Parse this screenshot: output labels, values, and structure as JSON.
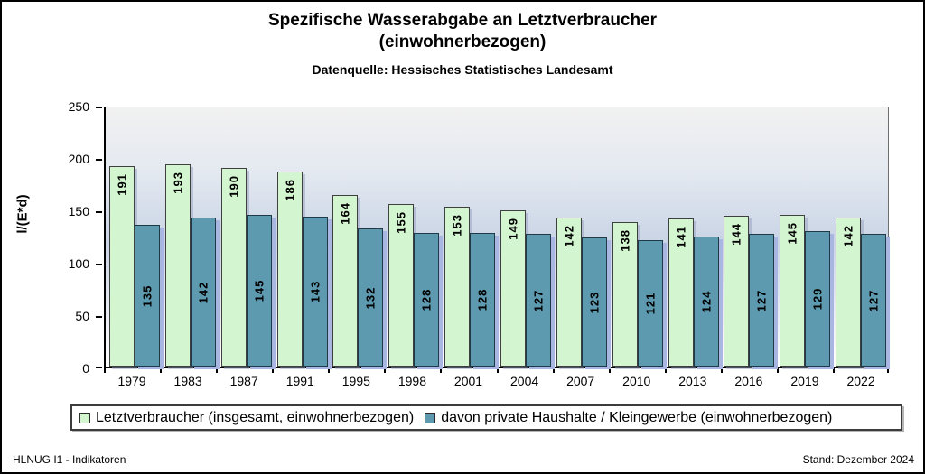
{
  "header": {
    "title_line1": "Spezifische Wasserabgabe an Letztverbraucher",
    "title_line2": "(einwohnerbezogen)",
    "subtitle": "Datenquelle: Hessisches Statistisches Landesamt"
  },
  "chart_data": {
    "type": "bar",
    "title": "Spezifische Wasserabgabe an Letztverbraucher (einwohnerbezogen)",
    "subtitle": "Datenquelle: Hessisches Statistisches Landesamt",
    "categories": [
      "1979",
      "1983",
      "1987",
      "1991",
      "1995",
      "1998",
      "2001",
      "2004",
      "2007",
      "2010",
      "2013",
      "2016",
      "2019",
      "2022"
    ],
    "series": [
      {
        "name": "Letztverbraucher (insgesamt, einwohnerbezogen)",
        "values": [
          191,
          193,
          190,
          186,
          164,
          155,
          153,
          149,
          142,
          138,
          141,
          144,
          145,
          142
        ],
        "fill": "#d3f5cf",
        "border": "#3f3f3f",
        "label_position": "inside-top"
      },
      {
        "name": "davon private Haushalte / Kleingewerbe (einwohnerbezogen)",
        "values": [
          135,
          142,
          145,
          143,
          132,
          128,
          128,
          127,
          123,
          121,
          124,
          127,
          129,
          127
        ],
        "fill": "#5d9ab0",
        "border": "#1f3a47",
        "label_position": "center"
      }
    ],
    "ylabel": "l/(E*d)",
    "xlabel": "",
    "ylim": [
      0,
      250
    ],
    "yticks": [
      0,
      50,
      100,
      150,
      200,
      250
    ],
    "grid": false,
    "bar_labels": true,
    "legend_position": "bottom",
    "plot_bg_gradient": [
      "#f1f1f1",
      "#e4e9f1",
      "#c9d4e5",
      "#e9edf4",
      "#ffffff"
    ],
    "bar_shadow_color": "#a9b6e2"
  },
  "footer": {
    "left": "HLNUG I1 - Indikatoren",
    "right": "Stand: Dezember 2024"
  }
}
